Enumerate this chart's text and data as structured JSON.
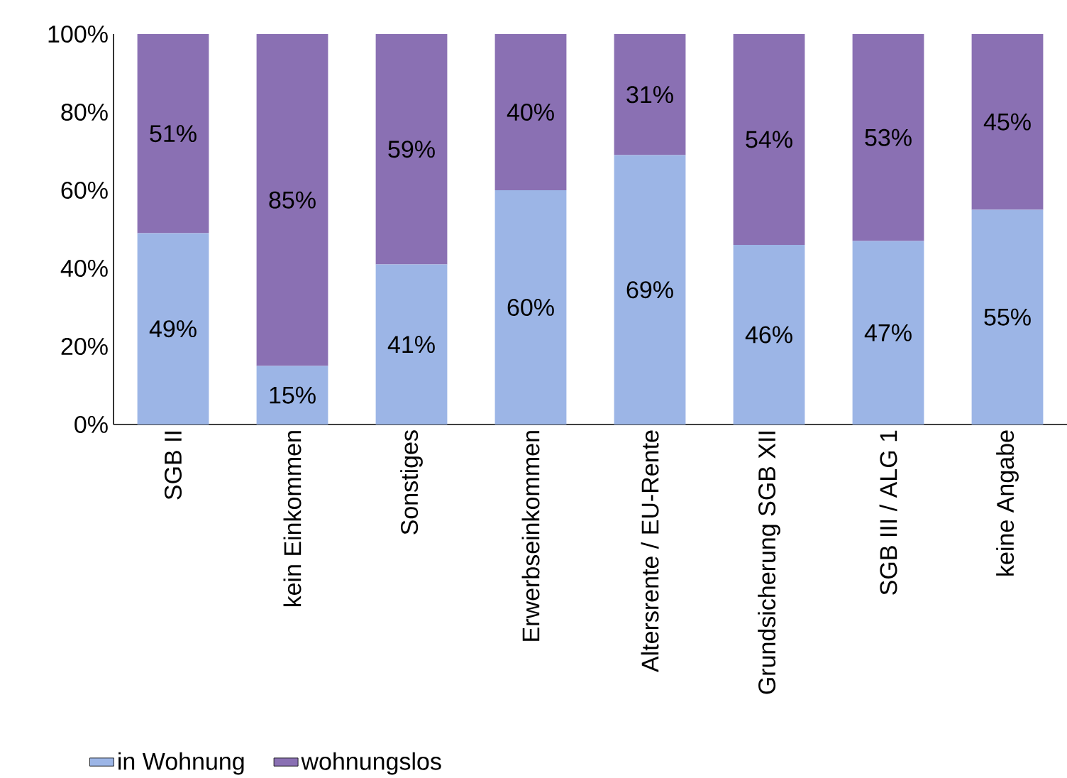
{
  "chart_data": {
    "type": "bar",
    "stacked": true,
    "categories": [
      "SGB II",
      "kein Einkommen",
      "Sonstiges",
      "Erwerbseinkommen",
      "Altersrente / EU-Rente",
      "Grundsicherung SGB XII",
      "SGB III / ALG 1",
      "keine Angabe"
    ],
    "series": [
      {
        "name": "in Wohnung",
        "color": "#9cb5e6",
        "values": [
          49,
          15,
          41,
          60,
          69,
          46,
          47,
          55
        ],
        "value_labels": [
          "49%",
          "15%",
          "41%",
          "60%",
          "69%",
          "46%",
          "47%",
          "55%"
        ]
      },
      {
        "name": "wohnungslos",
        "color": "#8a70b3",
        "values": [
          51,
          85,
          59,
          40,
          31,
          54,
          53,
          45
        ],
        "value_labels": [
          "51%",
          "85%",
          "59%",
          "40%",
          "31%",
          "54%",
          "53%",
          "45%"
        ]
      }
    ],
    "ylim": [
      0,
      100
    ],
    "yticks": [
      {
        "value": 0,
        "label": "0%"
      },
      {
        "value": 20,
        "label": "20%"
      },
      {
        "value": 40,
        "label": "40%"
      },
      {
        "value": 60,
        "label": "60%"
      },
      {
        "value": 80,
        "label": "80%"
      },
      {
        "value": 100,
        "label": "100%"
      }
    ],
    "legend": "bottom"
  }
}
